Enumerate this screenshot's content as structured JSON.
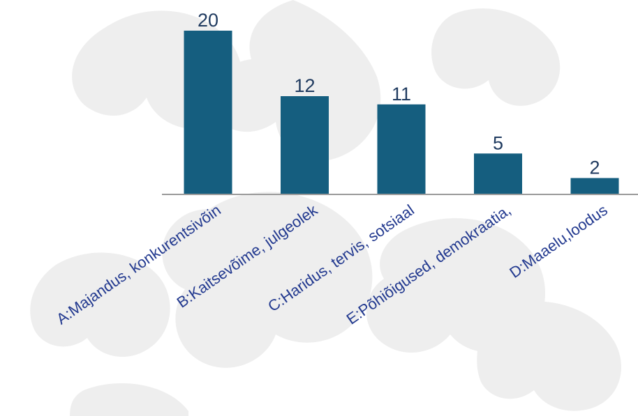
{
  "chart_data": {
    "type": "bar",
    "categories": [
      "A:Majandus, konkurentsivõin",
      "B:Kaitsevõime, julgeolek",
      "C:Haridus, tervis, sotsiaal",
      "E:Põhiõigused, demokraatia,",
      "D:Maaelu,loodus"
    ],
    "values": [
      20,
      12,
      11,
      5,
      2
    ],
    "value_labels": [
      "20",
      "12",
      "11",
      "5",
      "2"
    ],
    "title": "",
    "xlabel": "",
    "ylabel": "",
    "ylim": [
      0,
      20
    ],
    "grid": false,
    "legend": "none",
    "colors": {
      "bar": "#155e7f",
      "value_label": "#1f3a5f",
      "category_label": "#22398f",
      "baseline": "#9a9a9a",
      "watermark": "#eeeeee"
    }
  }
}
